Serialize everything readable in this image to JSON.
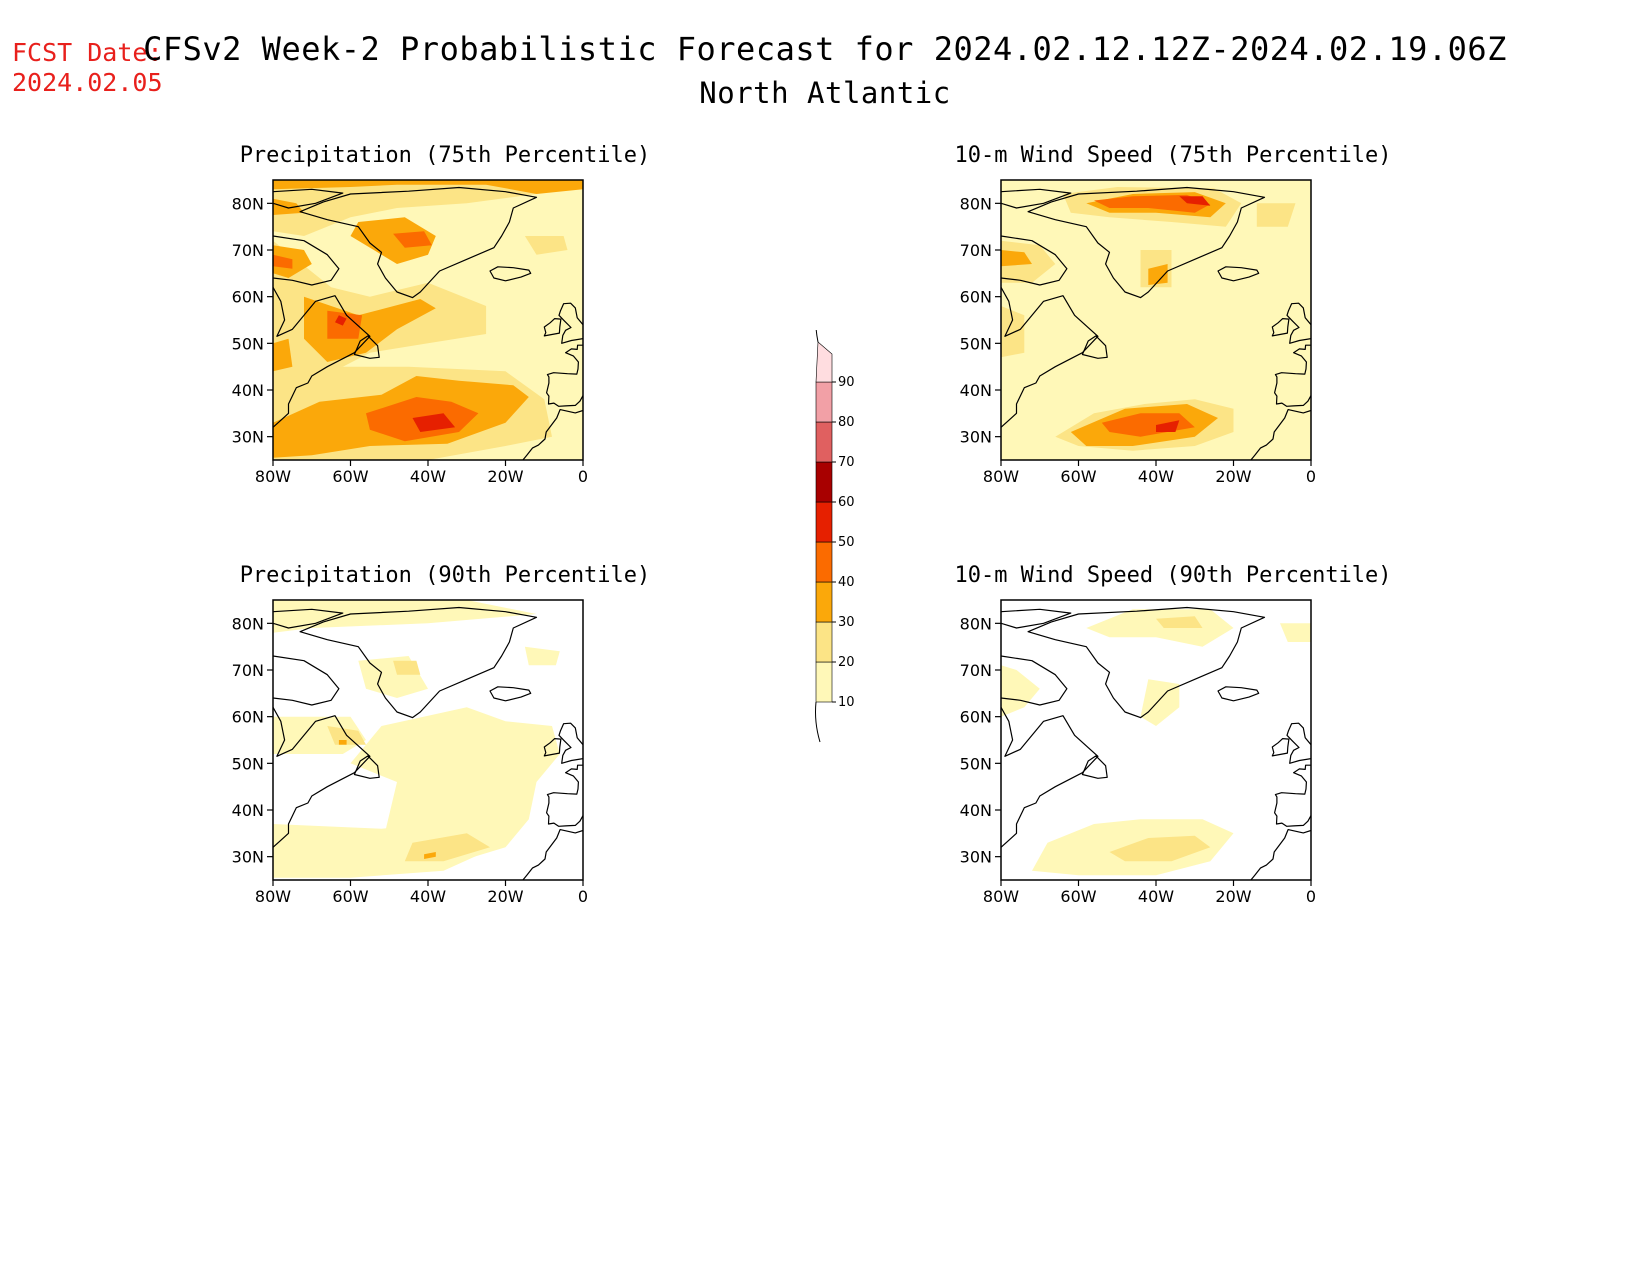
{
  "fcst_date": {
    "label": "FCST Date:",
    "value": "2024.02.05"
  },
  "title": "CFSv2 Week-2 Probabilistic Forecast for 2024.02.12.12Z-2024.02.19.06Z",
  "subtitle": "North Atlantic",
  "panels": [
    {
      "id": "precip75",
      "title": "Precipitation (75th Percentile)"
    },
    {
      "id": "wind75",
      "title": "10-m Wind Speed (75th Percentile)"
    },
    {
      "id": "precip90",
      "title": "Precipitation (90th Percentile)"
    },
    {
      "id": "wind90",
      "title": "10-m Wind Speed (90th Percentile)"
    }
  ],
  "map_axes": {
    "lon_ticks": [
      "80W",
      "60W",
      "40W",
      "20W",
      "0"
    ],
    "lat_ticks": [
      "80N",
      "70N",
      "60N",
      "50N",
      "40N",
      "30N"
    ],
    "lon_range": [
      -80,
      0
    ],
    "lat_range": [
      25,
      85
    ]
  },
  "colorbar": {
    "levels": [
      "10",
      "20",
      "30",
      "40",
      "50",
      "60",
      "70",
      "80",
      "90"
    ],
    "colors": [
      "#fff8b8",
      "#fce486",
      "#fba80a",
      "#fb6b00",
      "#e62000",
      "#a80000",
      "#e06060",
      "#f2a0a6",
      "#ffdde0"
    ]
  }
}
